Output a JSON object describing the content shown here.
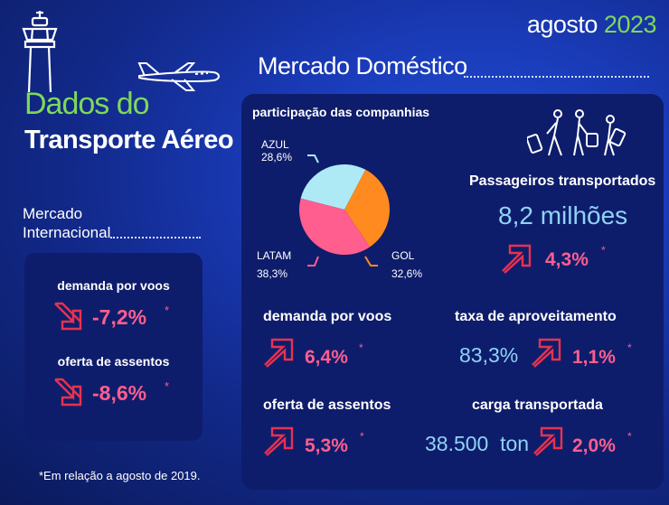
{
  "header": {
    "month": "agosto",
    "year": "2023",
    "title_line1": "Dados do",
    "title_line2": "Transporte Aéreo"
  },
  "international": {
    "label_line1": "Mercado",
    "label_line2": "Internacional",
    "demand_label": "demanda por voos",
    "demand_value": "-7,2%",
    "seats_label": "oferta de assentos",
    "seats_value": "-8,6%",
    "asterisk": "*"
  },
  "domestic": {
    "title": "Mercado Doméstico",
    "share_label": "participação das companhias",
    "airlines": [
      {
        "name": "AZUL",
        "share_text": "28,6%",
        "share": 28.6,
        "color": "#aeeaf5"
      },
      {
        "name": "LATAM",
        "share_text": "38,3%",
        "share": 38.3,
        "color": "#ff5e8e"
      },
      {
        "name": "GOL",
        "share_text": "32,6%",
        "share": 32.6,
        "color": "#ff8a1f"
      }
    ],
    "passengers_label": "Passageiros transportados",
    "passengers_value": "8,2 milhões",
    "passengers_change": "4,3%",
    "demand_label": "demanda por voos",
    "demand_change": "6,4%",
    "load_factor_label": "taxa de aproveitamento",
    "load_factor_value": "83,3%",
    "load_factor_change": "1,1%",
    "seats_label": "oferta de assentos",
    "seats_change": "5,3%",
    "cargo_label": "carga transportada",
    "cargo_value": "38.500  ton",
    "cargo_change": "2,0%",
    "asterisk": "*"
  },
  "footnote": "*Em relação a agosto de 2019.",
  "colors": {
    "accent_green": "#7ed957",
    "accent_pink": "#ff5e8e",
    "accent_cyan": "#8fd3f7"
  },
  "icons": [
    "control-tower-icon",
    "airplane-icon",
    "travelers-icon",
    "arrow-up-right-icon",
    "arrow-down-right-icon"
  ]
}
